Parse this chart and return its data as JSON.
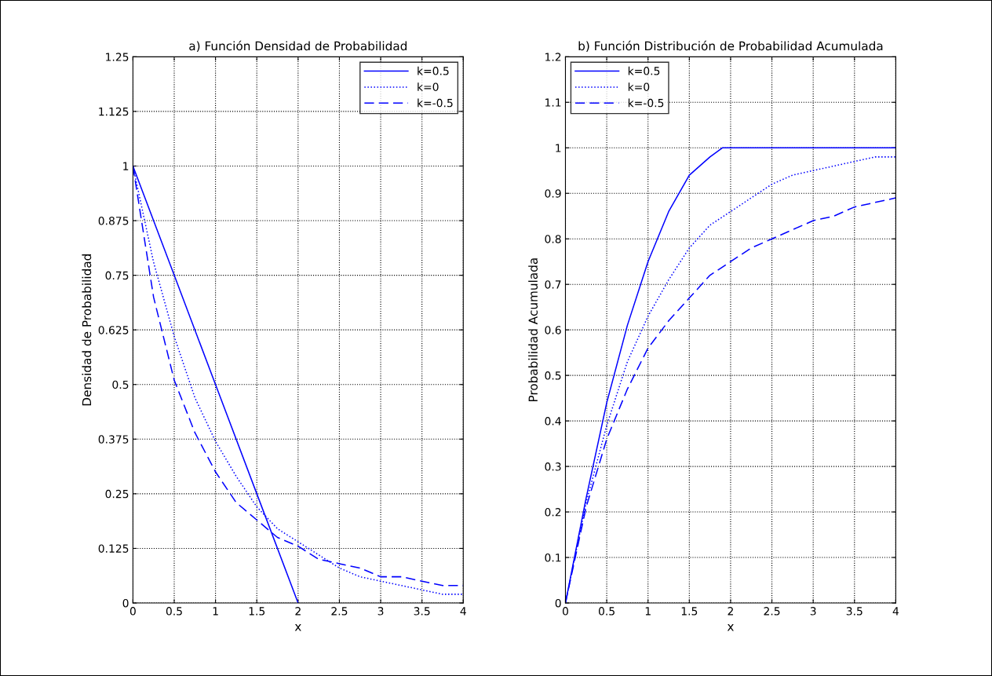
{
  "chart_data": [
    {
      "type": "line",
      "title": "a) Función Densidad de Probabilidad",
      "xlabel": "x",
      "ylabel": "Densidad de Probabilidad",
      "xlim": [
        0,
        4
      ],
      "ylim": [
        0,
        1.25
      ],
      "xticks": [
        0,
        0.5,
        1,
        1.5,
        2,
        2.5,
        3,
        3.5,
        4
      ],
      "yticks": [
        0,
        0.125,
        0.25,
        0.375,
        0.5,
        0.625,
        0.75,
        0.875,
        1,
        1.125,
        1.25
      ],
      "grid": true,
      "legend": "top right",
      "series": [
        {
          "name": "k=0.5",
          "color": "#0000ff",
          "line_style": "solid",
          "x": [
            0,
            0.5,
            1,
            1.5,
            2
          ],
          "values": [
            1,
            0.75,
            0.5,
            0.25,
            0
          ]
        },
        {
          "name": "k=0",
          "color": "#0000ff",
          "line_style": "dotted",
          "x": [
            0,
            0.25,
            0.5,
            0.75,
            1,
            1.25,
            1.5,
            1.75,
            2,
            2.25,
            2.5,
            2.75,
            3,
            3.25,
            3.5,
            3.75,
            4
          ],
          "values": [
            1,
            0.78,
            0.61,
            0.47,
            0.37,
            0.29,
            0.22,
            0.17,
            0.14,
            0.11,
            0.08,
            0.06,
            0.05,
            0.04,
            0.03,
            0.02,
            0.02
          ]
        },
        {
          "name": "k=-0.5",
          "color": "#0000ff",
          "line_style": "dashed",
          "x": [
            0,
            0.25,
            0.5,
            0.75,
            1,
            1.25,
            1.5,
            1.75,
            2,
            2.25,
            2.5,
            2.75,
            3,
            3.25,
            3.5,
            3.75,
            4
          ],
          "values": [
            1,
            0.7,
            0.51,
            0.39,
            0.3,
            0.23,
            0.19,
            0.15,
            0.13,
            0.1,
            0.09,
            0.08,
            0.06,
            0.06,
            0.05,
            0.04,
            0.04
          ]
        }
      ]
    },
    {
      "type": "line",
      "title": "b) Función Distribución de Probabilidad Acumulada",
      "xlabel": "x",
      "ylabel": "Probabilidad Acumulada",
      "xlim": [
        0,
        4
      ],
      "ylim": [
        0,
        1.2
      ],
      "xticks": [
        0,
        0.5,
        1,
        1.5,
        2,
        2.5,
        3,
        3.5,
        4
      ],
      "yticks": [
        0,
        0.1,
        0.2,
        0.3,
        0.4,
        0.5,
        0.6,
        0.7,
        0.8,
        0.9,
        1,
        1.1,
        1.2
      ],
      "grid": true,
      "legend": "top left",
      "series": [
        {
          "name": "k=0.5",
          "color": "#0000ff",
          "line_style": "solid",
          "x": [
            0,
            0.25,
            0.5,
            0.75,
            1,
            1.25,
            1.5,
            1.75,
            1.9,
            4
          ],
          "values": [
            0,
            0.23,
            0.44,
            0.61,
            0.75,
            0.86,
            0.94,
            0.98,
            1,
            1
          ]
        },
        {
          "name": "k=0",
          "color": "#0000ff",
          "line_style": "dotted",
          "x": [
            0,
            0.25,
            0.5,
            0.75,
            1,
            1.25,
            1.5,
            1.75,
            2,
            2.25,
            2.5,
            2.75,
            3,
            3.25,
            3.5,
            3.75,
            4
          ],
          "values": [
            0,
            0.22,
            0.39,
            0.53,
            0.63,
            0.71,
            0.78,
            0.83,
            0.86,
            0.89,
            0.92,
            0.94,
            0.95,
            0.96,
            0.97,
            0.98,
            0.98
          ]
        },
        {
          "name": "k=-0.5",
          "color": "#0000ff",
          "line_style": "dashed",
          "x": [
            0,
            0.25,
            0.5,
            0.75,
            1,
            1.25,
            1.5,
            1.75,
            2,
            2.25,
            2.5,
            2.75,
            3,
            3.25,
            3.5,
            3.75,
            4
          ],
          "values": [
            0,
            0.21,
            0.36,
            0.47,
            0.56,
            0.62,
            0.67,
            0.72,
            0.75,
            0.78,
            0.8,
            0.82,
            0.84,
            0.85,
            0.87,
            0.88,
            0.89
          ]
        }
      ]
    }
  ]
}
